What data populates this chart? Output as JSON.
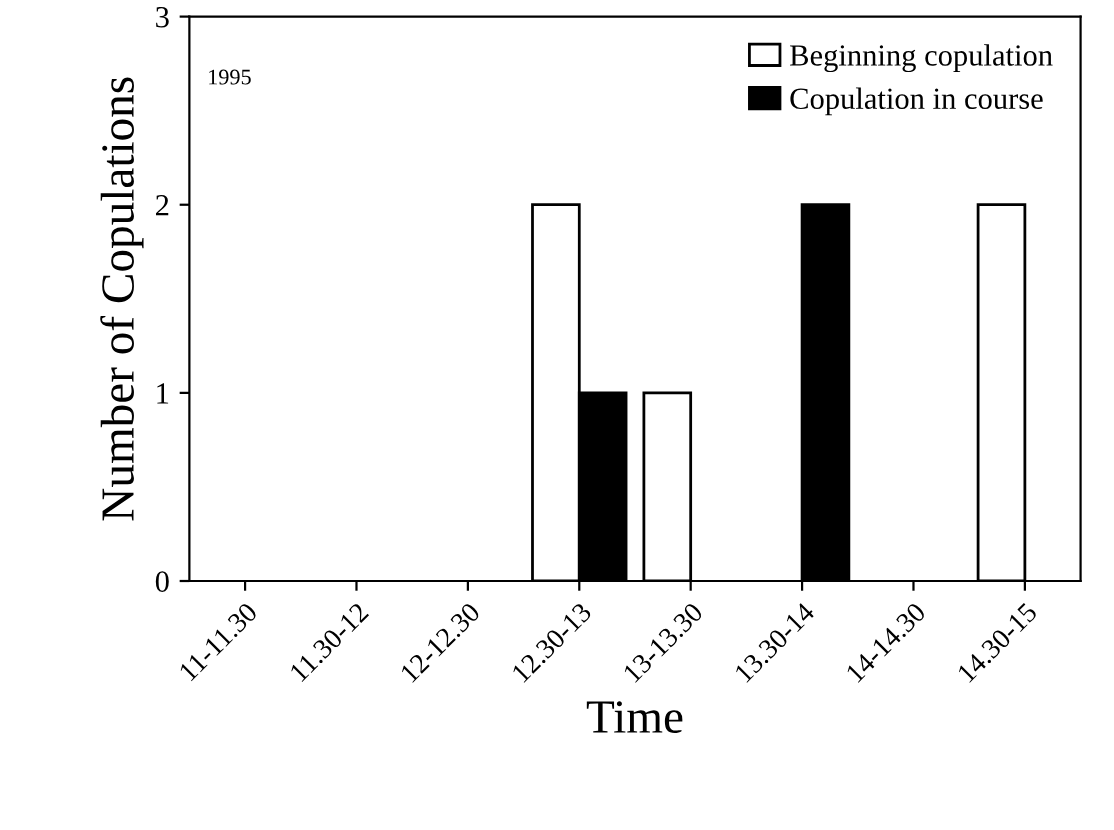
{
  "chart_data": {
    "type": "bar",
    "xlabel": "Time",
    "ylabel": "Number of Copulations",
    "categories": [
      "11-11.30",
      "11.30-12",
      "12-12.30",
      "12.30-13",
      "13-13.30",
      "13.30-14",
      "14-14.30",
      "14.30-15"
    ],
    "series": [
      {
        "name": "Beginning copulation",
        "color": "#ffffff",
        "values": [
          0,
          0,
          0,
          2,
          1,
          0,
          0,
          2
        ]
      },
      {
        "name": "Copulation in course",
        "color": "#000000",
        "values": [
          0,
          0,
          0,
          1,
          0,
          2,
          0,
          0
        ]
      }
    ],
    "ylim": [
      0,
      3
    ],
    "yticks": [
      0,
      1,
      2,
      3
    ],
    "grid": false,
    "legend": "top right",
    "annotations": [
      "1995"
    ]
  }
}
